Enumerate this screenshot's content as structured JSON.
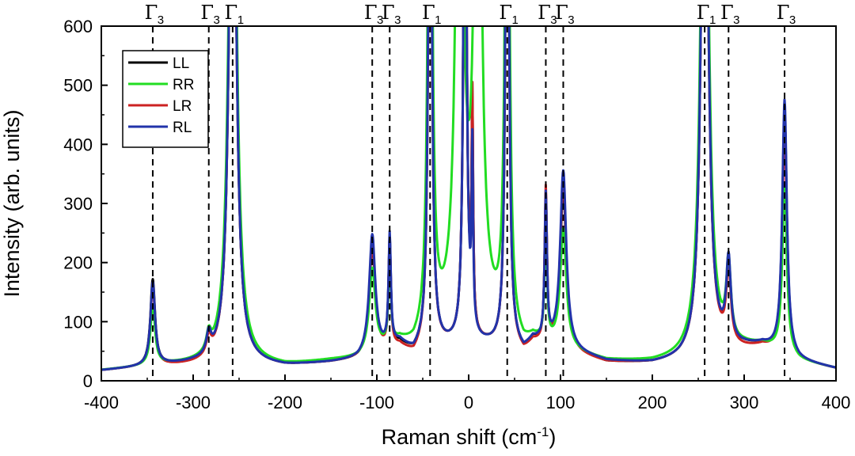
{
  "chart_data": {
    "type": "line",
    "xlabel_main": "Raman shift (cm",
    "xlabel_sup": "-1",
    "xlabel_close": ")",
    "ylabel": "Intensity (arb. units)",
    "xlim": [
      -400,
      400
    ],
    "ylim": [
      0,
      600
    ],
    "xticks": [
      "-400",
      "-300",
      "-200",
      "-100",
      "0",
      "100",
      "200",
      "300",
      "400"
    ],
    "yticks": [
      "0",
      "100",
      "200",
      "300",
      "400",
      "500",
      "600"
    ],
    "colors": {
      "LL": "#000000",
      "RR": "#22dd22",
      "LR": "#cc2222",
      "RL": "#2233aa"
    },
    "peak_markers": [
      {
        "x": -344,
        "symbol": "Γ",
        "sub": "3"
      },
      {
        "x": -283,
        "symbol": "Γ",
        "sub": "3"
      },
      {
        "x": -257,
        "symbol": "Γ",
        "sub": "1"
      },
      {
        "x": -105,
        "symbol": "Γ",
        "sub": "3"
      },
      {
        "x": -86,
        "symbol": "Γ",
        "sub": "3"
      },
      {
        "x": -42,
        "symbol": "Γ",
        "sub": "1"
      },
      {
        "x": 42,
        "symbol": "Γ",
        "sub": "1"
      },
      {
        "x": 84,
        "symbol": "Γ",
        "sub": "3"
      },
      {
        "x": 103,
        "symbol": "Γ",
        "sub": "3"
      },
      {
        "x": 257,
        "symbol": "Γ",
        "sub": "1"
      },
      {
        "x": 283,
        "symbol": "Γ",
        "sub": "3"
      },
      {
        "x": 344,
        "symbol": "Γ",
        "sub": "3"
      }
    ],
    "series": [
      {
        "name": "LL",
        "background": [
          {
            "x": -400,
            "y": 17
          },
          {
            "x": -360,
            "y": 22
          },
          {
            "x": -330,
            "y": 26
          },
          {
            "x": -300,
            "y": 27
          },
          {
            "x": -250,
            "y": 28
          },
          {
            "x": -200,
            "y": 24
          },
          {
            "x": -150,
            "y": 30
          },
          {
            "x": -120,
            "y": 35
          },
          {
            "x": -75,
            "y": 60
          },
          {
            "x": -60,
            "y": 45
          },
          {
            "x": -50,
            "y": 55
          },
          {
            "x": -20,
            "y": 58
          },
          {
            "x": 0,
            "y": 60
          },
          {
            "x": 20,
            "y": 58
          },
          {
            "x": 50,
            "y": 52
          },
          {
            "x": 60,
            "y": 45
          },
          {
            "x": 70,
            "y": 65
          },
          {
            "x": 150,
            "y": 30
          },
          {
            "x": 200,
            "y": 28
          },
          {
            "x": 230,
            "y": 32
          },
          {
            "x": 300,
            "y": 55
          },
          {
            "x": 320,
            "y": 58
          },
          {
            "x": 360,
            "y": 32
          },
          {
            "x": 400,
            "y": 20
          }
        ],
        "peaks": [
          {
            "x": -344,
            "amp": 145,
            "width": 3
          },
          {
            "x": -283,
            "amp": 30,
            "width": 3
          },
          {
            "x": -257,
            "amp": 1200,
            "width": 4
          },
          {
            "x": -105,
            "amp": 180,
            "width": 4
          },
          {
            "x": -86,
            "amp": 180,
            "width": 1.5
          },
          {
            "x": -42,
            "amp": 1200,
            "width": 2
          },
          {
            "x": -4,
            "amp": 1000,
            "width": 2
          },
          {
            "x": 4,
            "amp": 380,
            "width": 1
          },
          {
            "x": 42,
            "amp": 1200,
            "width": 2
          },
          {
            "x": 84,
            "amp": 240,
            "width": 1.5
          },
          {
            "x": 103,
            "amp": 270,
            "width": 4
          },
          {
            "x": 257,
            "amp": 1200,
            "width": 4
          },
          {
            "x": 283,
            "amp": 130,
            "width": 3
          },
          {
            "x": 344,
            "amp": 410,
            "width": 3
          }
        ]
      },
      {
        "name": "RR",
        "background": [
          {
            "x": -400,
            "y": 17
          },
          {
            "x": -360,
            "y": 22
          },
          {
            "x": -330,
            "y": 26
          },
          {
            "x": -300,
            "y": 27
          },
          {
            "x": -250,
            "y": 28
          },
          {
            "x": -200,
            "y": 24
          },
          {
            "x": -150,
            "y": 32
          },
          {
            "x": -120,
            "y": 35
          },
          {
            "x": -75,
            "y": 60
          },
          {
            "x": -60,
            "y": 50
          },
          {
            "x": -50,
            "y": 60
          },
          {
            "x": -20,
            "y": 90
          },
          {
            "x": 0,
            "y": 100
          },
          {
            "x": 20,
            "y": 90
          },
          {
            "x": 50,
            "y": 55
          },
          {
            "x": 60,
            "y": 48
          },
          {
            "x": 70,
            "y": 62
          },
          {
            "x": 150,
            "y": 32
          },
          {
            "x": 200,
            "y": 30
          },
          {
            "x": 230,
            "y": 34
          },
          {
            "x": 300,
            "y": 55
          },
          {
            "x": 320,
            "y": 58
          },
          {
            "x": 360,
            "y": 32
          },
          {
            "x": 400,
            "y": 20
          }
        ],
        "peaks": [
          {
            "x": -344,
            "amp": 100,
            "width": 3
          },
          {
            "x": -283,
            "amp": 30,
            "width": 3
          },
          {
            "x": -257,
            "amp": 1200,
            "width": 4.5
          },
          {
            "x": -105,
            "amp": 140,
            "width": 4
          },
          {
            "x": -86,
            "amp": 150,
            "width": 1.5
          },
          {
            "x": -42,
            "amp": 1200,
            "width": 2.5
          },
          {
            "x": -10,
            "amp": 1200,
            "width": 4
          },
          {
            "x": 10,
            "amp": 1200,
            "width": 4
          },
          {
            "x": 42,
            "amp": 1200,
            "width": 2.5
          },
          {
            "x": 84,
            "amp": 200,
            "width": 1.5
          },
          {
            "x": 103,
            "amp": 200,
            "width": 4
          },
          {
            "x": 257,
            "amp": 1200,
            "width": 4.5
          },
          {
            "x": 283,
            "amp": 130,
            "width": 3
          },
          {
            "x": 344,
            "amp": 280,
            "width": 3
          }
        ]
      },
      {
        "name": "LR",
        "background": [
          {
            "x": -400,
            "y": 17
          },
          {
            "x": -360,
            "y": 22
          },
          {
            "x": -330,
            "y": 24
          },
          {
            "x": -300,
            "y": 25
          },
          {
            "x": -250,
            "y": 28
          },
          {
            "x": -200,
            "y": 24
          },
          {
            "x": -150,
            "y": 30
          },
          {
            "x": -120,
            "y": 35
          },
          {
            "x": -75,
            "y": 55
          },
          {
            "x": -60,
            "y": 40
          },
          {
            "x": -50,
            "y": 52
          },
          {
            "x": -20,
            "y": 58
          },
          {
            "x": 0,
            "y": 60
          },
          {
            "x": 20,
            "y": 58
          },
          {
            "x": 50,
            "y": 50
          },
          {
            "x": 60,
            "y": 42
          },
          {
            "x": 70,
            "y": 60
          },
          {
            "x": 150,
            "y": 30
          },
          {
            "x": 200,
            "y": 28
          },
          {
            "x": 230,
            "y": 32
          },
          {
            "x": 300,
            "y": 50
          },
          {
            "x": 320,
            "y": 55
          },
          {
            "x": 360,
            "y": 32
          },
          {
            "x": 400,
            "y": 20
          }
        ],
        "peaks": [
          {
            "x": -344,
            "amp": 135,
            "width": 3
          },
          {
            "x": -283,
            "amp": 30,
            "width": 3
          },
          {
            "x": -257,
            "amp": 1200,
            "width": 4
          },
          {
            "x": -105,
            "amp": 185,
            "width": 4
          },
          {
            "x": -86,
            "amp": 180,
            "width": 1.5
          },
          {
            "x": -42,
            "amp": 1200,
            "width": 2
          },
          {
            "x": -4,
            "amp": 1000,
            "width": 2
          },
          {
            "x": 4,
            "amp": 380,
            "width": 1
          },
          {
            "x": 42,
            "amp": 1200,
            "width": 2
          },
          {
            "x": 84,
            "amp": 260,
            "width": 1.5
          },
          {
            "x": 103,
            "amp": 285,
            "width": 4
          },
          {
            "x": 257,
            "amp": 1200,
            "width": 4
          },
          {
            "x": 283,
            "amp": 125,
            "width": 3
          },
          {
            "x": 344,
            "amp": 380,
            "width": 3
          }
        ]
      },
      {
        "name": "RL",
        "background": [
          {
            "x": -400,
            "y": 17
          },
          {
            "x": -360,
            "y": 22
          },
          {
            "x": -330,
            "y": 26
          },
          {
            "x": -300,
            "y": 28
          },
          {
            "x": -250,
            "y": 28
          },
          {
            "x": -200,
            "y": 24
          },
          {
            "x": -150,
            "y": 30
          },
          {
            "x": -120,
            "y": 35
          },
          {
            "x": -75,
            "y": 62
          },
          {
            "x": -60,
            "y": 45
          },
          {
            "x": -50,
            "y": 55
          },
          {
            "x": -20,
            "y": 58
          },
          {
            "x": 0,
            "y": 60
          },
          {
            "x": 20,
            "y": 58
          },
          {
            "x": 50,
            "y": 52
          },
          {
            "x": 60,
            "y": 45
          },
          {
            "x": 70,
            "y": 65
          },
          {
            "x": 150,
            "y": 32
          },
          {
            "x": 200,
            "y": 28
          },
          {
            "x": 230,
            "y": 32
          },
          {
            "x": 300,
            "y": 55
          },
          {
            "x": 320,
            "y": 58
          },
          {
            "x": 360,
            "y": 32
          },
          {
            "x": 400,
            "y": 20
          }
        ],
        "peaks": [
          {
            "x": -344,
            "amp": 140,
            "width": 3
          },
          {
            "x": -283,
            "amp": 35,
            "width": 3
          },
          {
            "x": -257,
            "amp": 1200,
            "width": 4
          },
          {
            "x": -105,
            "amp": 200,
            "width": 4
          },
          {
            "x": -86,
            "amp": 185,
            "width": 1.5
          },
          {
            "x": -42,
            "amp": 1200,
            "width": 2
          },
          {
            "x": -4,
            "amp": 1000,
            "width": 2
          },
          {
            "x": 4,
            "amp": 300,
            "width": 1
          },
          {
            "x": 42,
            "amp": 1200,
            "width": 2
          },
          {
            "x": 84,
            "amp": 245,
            "width": 1.5
          },
          {
            "x": 103,
            "amp": 300,
            "width": 4
          },
          {
            "x": 257,
            "amp": 1200,
            "width": 4
          },
          {
            "x": 283,
            "amp": 140,
            "width": 3
          },
          {
            "x": 344,
            "amp": 430,
            "width": 3
          }
        ]
      }
    ],
    "legend": [
      "LL",
      "RR",
      "LR",
      "RL"
    ],
    "legend_position": "top-left"
  }
}
